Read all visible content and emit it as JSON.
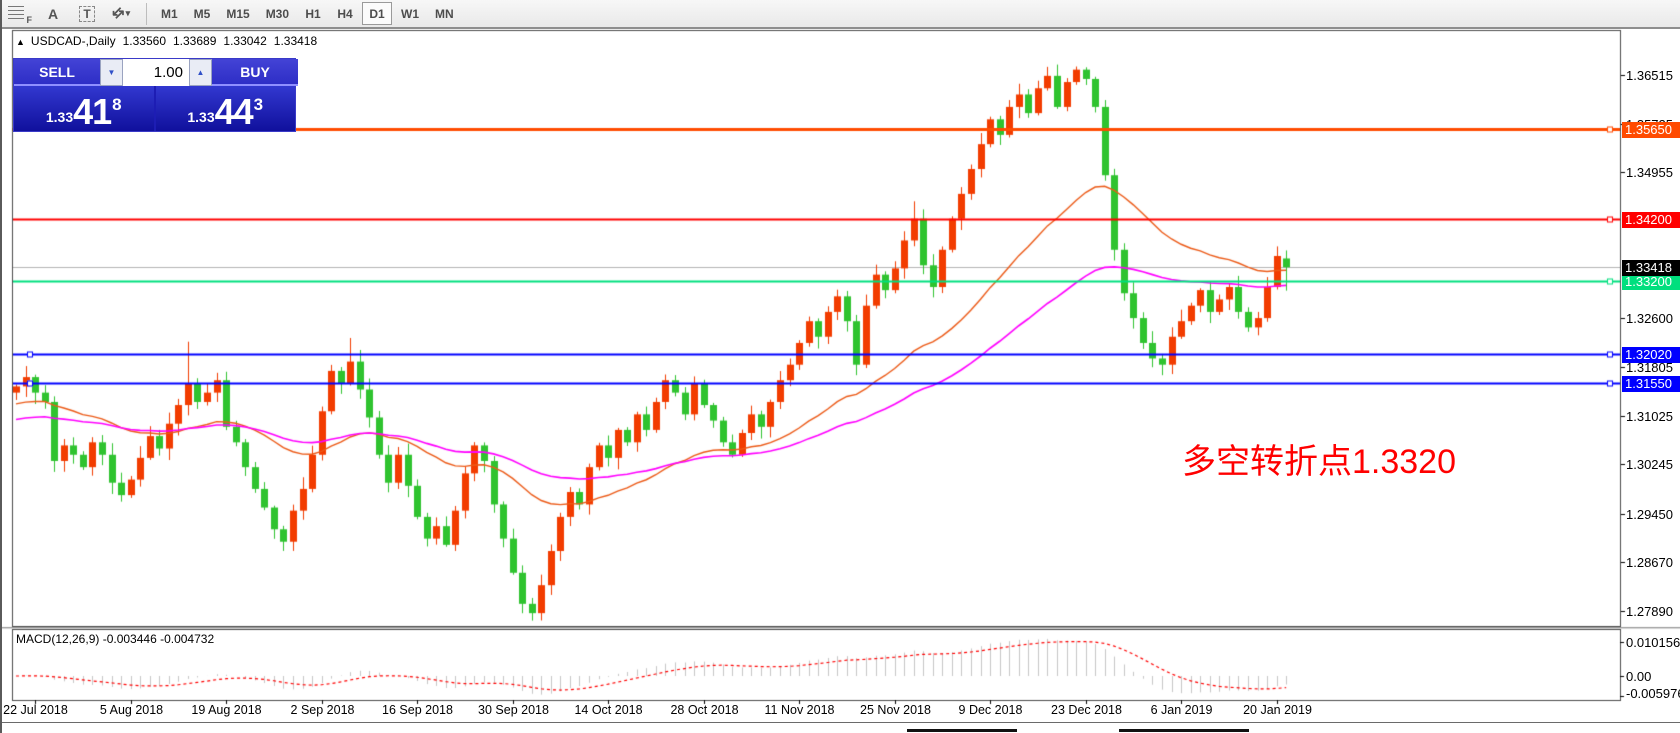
{
  "toolbar": {
    "icons": [
      {
        "name": "dotted-grid-f-icon",
        "sub": "F"
      },
      {
        "name": "font-tool-icon",
        "glyph": "A"
      },
      {
        "name": "text-box-tool-icon",
        "glyph": "T"
      },
      {
        "name": "arrange-windows-icon",
        "glyph": "⇵",
        "caret": "▾"
      }
    ],
    "timeframes": [
      "M1",
      "M5",
      "M15",
      "M30",
      "H1",
      "H4",
      "D1",
      "W1",
      "MN"
    ],
    "active_timeframe": "D1"
  },
  "chart_header": {
    "collapse_icon": "▲",
    "symbol": "USDCAD-,Daily",
    "open": "1.33560",
    "high": "1.33689",
    "low": "1.33042",
    "close": "1.33418"
  },
  "trade_panel": {
    "sell_label": "SELL",
    "buy_label": "BUY",
    "volume": "1.00",
    "spin_down": "▼",
    "spin_up": "▲",
    "sell_price": {
      "prefix": "1.33",
      "big": "41",
      "sup": "8"
    },
    "buy_price": {
      "prefix": "1.33",
      "big": "44",
      "sup": "3"
    }
  },
  "annotation": {
    "text": "多空转折点1.3320",
    "color": "#ff0000"
  },
  "macd": {
    "label": "MACD(12,26,9) -0.003446 -0.004732",
    "axis_labels": [
      {
        "text": "0.010156",
        "value": 0.010156
      },
      {
        "text": "0.00",
        "value": 0.0
      },
      {
        "text": "-0.005976",
        "value": -0.005976
      }
    ]
  },
  "date_axis": [
    "22 Jul 2018",
    "5 Aug 2018",
    "19 Aug 2018",
    "2 Sep 2018",
    "16 Sep 2018",
    "30 Sep 2018",
    "14 Oct 2018",
    "28 Oct 2018",
    "11 Nov 2018",
    "25 Nov 2018",
    "9 Dec 2018",
    "23 Dec 2018",
    "6 Jan 2019",
    "20 Jan 2019"
  ],
  "chart_data": {
    "type": "candlestick",
    "symbol": "USDCAD",
    "timeframe": "Daily",
    "ylim": [
      1.27643,
      1.37222
    ],
    "y_ticks": [
      {
        "text": "1.36515",
        "value": 1.36515
      },
      {
        "text": "1.35725",
        "value": 1.35725
      },
      {
        "text": "1.34955",
        "value": 1.34955
      },
      {
        "text": "1.32600",
        "value": 1.326
      },
      {
        "text": "1.31805",
        "value": 1.31805
      },
      {
        "text": "1.31025",
        "value": 1.31025
      },
      {
        "text": "1.30245",
        "value": 1.30245
      },
      {
        "text": "1.29450",
        "value": 1.2945
      },
      {
        "text": "1.28670",
        "value": 1.2867
      },
      {
        "text": "1.27890",
        "value": 1.2789
      }
    ],
    "bull_color": "#f23c00",
    "bear_color": "#2fc32f",
    "first_open": 1.314,
    "closes": [
      1.315,
      1.3165,
      1.314,
      1.3125,
      1.303,
      1.3055,
      1.304,
      1.302,
      1.306,
      1.304,
      1.2995,
      1.2975,
      1.3,
      1.3035,
      1.307,
      1.305,
      1.309,
      1.312,
      1.3155,
      1.3125,
      1.314,
      1.316,
      1.3085,
      1.306,
      1.302,
      1.2985,
      1.2955,
      1.292,
      1.29,
      1.295,
      1.2985,
      1.304,
      1.311,
      1.3175,
      1.3155,
      1.319,
      1.3145,
      1.31,
      1.304,
      1.2995,
      1.304,
      1.299,
      1.294,
      1.2905,
      1.2925,
      1.2895,
      1.295,
      1.301,
      1.3055,
      1.303,
      1.296,
      1.2905,
      1.285,
      1.28,
      1.2785,
      1.283,
      1.2885,
      1.294,
      1.298,
      1.296,
      1.302,
      1.3055,
      1.3035,
      1.308,
      1.306,
      1.3105,
      1.308,
      1.3125,
      1.316,
      1.314,
      1.3105,
      1.3155,
      1.312,
      1.3095,
      1.306,
      1.304,
      1.3075,
      1.3105,
      1.3085,
      1.3125,
      1.316,
      1.3185,
      1.322,
      1.3255,
      1.323,
      1.327,
      1.3295,
      1.3255,
      1.3185,
      1.328,
      1.333,
      1.3305,
      1.334,
      1.3385,
      1.342,
      1.3345,
      1.331,
      1.337,
      1.342,
      1.346,
      1.35,
      1.354,
      1.358,
      1.3555,
      1.36,
      1.362,
      1.359,
      1.363,
      1.365,
      1.36,
      1.364,
      1.366,
      1.3645,
      1.36,
      1.349,
      1.337,
      1.33,
      1.326,
      1.322,
      1.3195,
      1.3185,
      1.323,
      1.3255,
      1.328,
      1.3305,
      1.327,
      1.329,
      1.331,
      1.327,
      1.3245,
      1.326,
      1.331,
      1.336,
      1.33418
    ],
    "last_candle": {
      "open": 1.3356,
      "high": 1.33689,
      "low": 1.33042,
      "close": 1.33418
    },
    "wick_overrides": {
      "18": {
        "high": 1.3222
      },
      "35": {
        "high": 1.3228
      },
      "54": {
        "low": 1.2773
      },
      "94": {
        "high": 1.3448
      },
      "111": {
        "high": 1.3665
      }
    },
    "ma_fast": {
      "type": "ema",
      "period": 30,
      "seed": 1.312,
      "color": "#ec5a17"
    },
    "ma_slow": {
      "type": "ema",
      "period": 60,
      "seed": 1.3095,
      "color": "#ff00ff"
    },
    "macd_params": {
      "fast": 12,
      "slow": 26,
      "signal": 9,
      "hist_color": "#c6c6c6",
      "signal_color": "#ff0000"
    },
    "hlines": [
      {
        "price": 1.3565,
        "label": "1.35650",
        "color": "#ff4b00",
        "width": 3,
        "handles": [
          "right"
        ]
      },
      {
        "price": 1.342,
        "label": "1.34200",
        "color": "#ff0000",
        "width": 2,
        "handles": [
          "right"
        ]
      },
      {
        "price": 1.332,
        "label": "1.33200",
        "color": "#00df7e",
        "width": 2,
        "handles": [
          "right"
        ]
      },
      {
        "price": 1.3202,
        "label": "1.32020",
        "color": "#0000ff",
        "width": 2,
        "handles": [
          "left",
          "right"
        ]
      },
      {
        "price": 1.3155,
        "label": "1.31550",
        "color": "#0000ff",
        "width": 2,
        "handles": [
          "left",
          "right"
        ]
      }
    ],
    "current_price": {
      "value": 1.33418,
      "label": "1.33418",
      "line_color": "#b4b4b4",
      "label_bg": "#000000"
    }
  }
}
